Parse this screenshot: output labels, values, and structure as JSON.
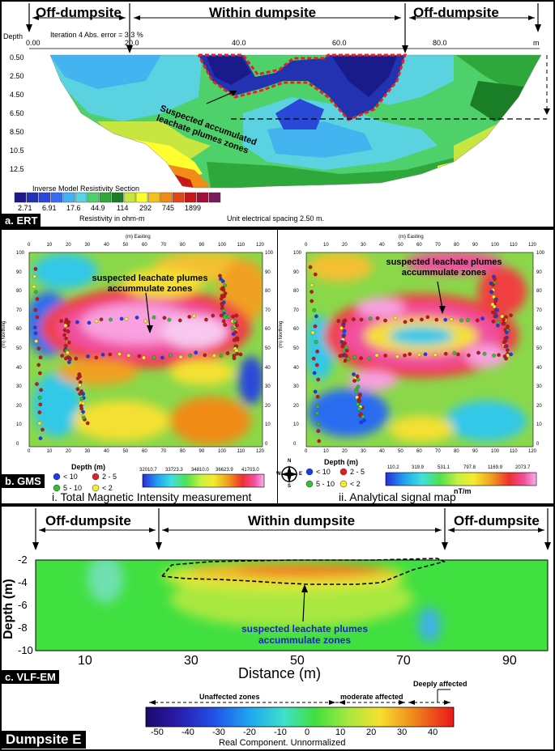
{
  "ert": {
    "zone_left": "Off-dumpsite",
    "zone_mid": "Within dumpsite",
    "zone_right": "Off-dumpsite",
    "depth_label": "Depth",
    "iteration_text": "Iteration 4  Abs. error = 3.3 %",
    "x_ticks": [
      "0.00",
      "20.0",
      "40.0",
      "60.0",
      "80.0",
      "m"
    ],
    "depth_ticks": [
      "0.50",
      "2.50",
      "4.50",
      "6.50",
      "8.50",
      "10.5",
      "12.5"
    ],
    "annotation": "Suspected accumulated leachate plumes zones",
    "legend_title": "Inverse Model Resistivity Section",
    "legend_values": [
      "2.71",
      "6.91",
      "17.6",
      "44.9",
      "114",
      "292",
      "745",
      "1899"
    ],
    "legend_unit": "Resistivity in ohm-m",
    "spacing_text": "Unit electrical spacing 2.50 m.",
    "tag": "a. ERT",
    "colors": [
      "#1a1a8a",
      "#2232b0",
      "#2a48d8",
      "#3a6cf0",
      "#44b4f0",
      "#5ad2e0",
      "#4ed06a",
      "#2ea83a",
      "#1a7e26",
      "#c8e640",
      "#ffff30",
      "#f2c020",
      "#f08c18",
      "#e04818",
      "#c81818",
      "#a01038",
      "#7a1a5a"
    ]
  },
  "gms": {
    "easting_label": "(m) Easting",
    "northing_label": "(m) Northing",
    "x_ticks": [
      "0",
      "10",
      "20",
      "30",
      "40",
      "50",
      "60",
      "70",
      "80",
      "90",
      "100",
      "110",
      "120"
    ],
    "y_ticks": [
      "100",
      "90",
      "80",
      "70",
      "60",
      "50",
      "40",
      "30",
      "20",
      "10",
      "0"
    ],
    "annotation_left": "suspected leachate plumes accummulate zones",
    "annotation_right": "suspected leachate plumes accummulate zones",
    "depth_title": "Depth (m)",
    "depth_legend": [
      {
        "label": "< 10",
        "color": "#1a3cf0"
      },
      {
        "label": "2 - 5",
        "color": "#e02020"
      },
      {
        "label": "5 - 10",
        "color": "#30c030"
      },
      {
        "label": "< 2",
        "color": "#f4ec30"
      }
    ],
    "left_scale": [
      "32010.7",
      "33723.3",
      "34810.0",
      "36623.9",
      "41703.0"
    ],
    "right_scale": [
      "110.2",
      "319.9",
      "531.1",
      "797.8",
      "1169.9",
      "2073.7"
    ],
    "right_unit": "nT/m",
    "compass": {
      "n": "N",
      "s": "S",
      "e": "E",
      "w": "W"
    },
    "caption_left": "i. Total Magnetic Intensity measurement",
    "caption_right": "ii. Analytical signal map",
    "tag": "b. GMS"
  },
  "vlf": {
    "zone_left": "Off-dumpsite",
    "zone_mid": "Within dumpsite",
    "zone_right": "Off-dumpsite",
    "y_ticks": [
      "-2",
      "-4",
      "-6",
      "-8",
      "-10"
    ],
    "y_label": "Depth (m)",
    "x_ticks": [
      "10",
      "30",
      "50",
      "70",
      "90"
    ],
    "x_label": "Distance (m)",
    "annotation": "suspected leachate plumes accummulate zones",
    "tag": "c. VLF-EM",
    "zone_unaffected": "Unaffected zones",
    "zone_moderate": "moderate affected",
    "zone_deep": "Deeply affected",
    "scale_ticks": [
      "-50",
      "-40",
      "-30",
      "-20",
      "-10",
      "0",
      "10",
      "20",
      "30",
      "40"
    ],
    "scale_label": "Real Component. Unnormalized"
  },
  "dumpsite_label": "Dumpsite E"
}
